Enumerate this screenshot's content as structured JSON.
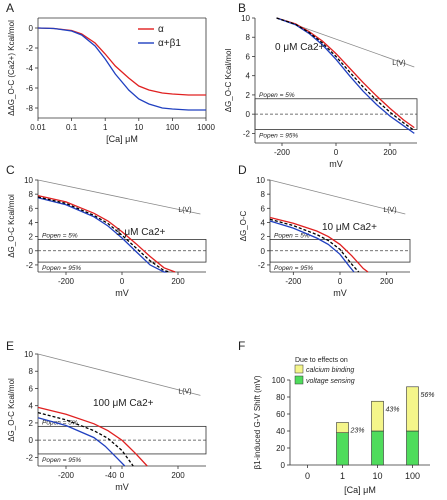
{
  "chart_data": [
    {
      "panel": "A",
      "type": "line",
      "xlabel": "[Ca] μM",
      "ylabel": "ΔΔG_O-C (Ca2+) Kcal/mol",
      "xscale": "log",
      "xlim": [
        0.01,
        1000
      ],
      "ylim": [
        -9,
        1
      ],
      "xticks": [
        0.01,
        0.1,
        1,
        10,
        100,
        1000
      ],
      "xticklabels": [
        "0.01",
        "0.1",
        "1",
        "10",
        "100",
        "1000"
      ],
      "yticks": [
        0,
        -2,
        -4,
        -6,
        -8
      ],
      "yticklabels": [
        "0",
        "-2",
        "-4",
        "-6",
        "-8"
      ],
      "legend": [
        "α",
        "α+β1"
      ],
      "legend_position": "top-right",
      "series": [
        {
          "name": "α",
          "color": "#e02020",
          "x": [
            0.01,
            0.03,
            0.1,
            0.2,
            0.5,
            1,
            2,
            5,
            10,
            20,
            50,
            100,
            300,
            1000
          ],
          "y": [
            0,
            -0.05,
            -0.25,
            -0.6,
            -1.5,
            -2.6,
            -3.8,
            -5.0,
            -5.8,
            -6.2,
            -6.5,
            -6.6,
            -6.7,
            -6.7
          ]
        },
        {
          "name": "α+β1",
          "color": "#2040c0",
          "x": [
            0.01,
            0.03,
            0.1,
            0.2,
            0.5,
            1,
            2,
            5,
            10,
            20,
            50,
            100,
            300,
            1000
          ],
          "y": [
            0,
            -0.05,
            -0.3,
            -0.7,
            -1.8,
            -3.1,
            -4.6,
            -6.2,
            -7.1,
            -7.6,
            -8.0,
            -8.1,
            -8.2,
            -8.2
          ]
        }
      ]
    },
    {
      "panel": "B",
      "type": "line",
      "title": "0 μM Ca2+",
      "xlabel": "mV",
      "ylabel": "ΔG_O-C Kcal/mol",
      "xlim": [
        -300,
        300
      ],
      "ylim": [
        -3,
        10
      ],
      "xticks": [
        -200,
        0,
        200
      ],
      "xticklabels": [
        "-200",
        "0",
        "200"
      ],
      "yticks": [
        10,
        8,
        6,
        4,
        2,
        0,
        -2
      ],
      "yticklabels": [
        "10",
        "8",
        "6",
        "4",
        "2",
        "0",
        "-2"
      ],
      "line_label": "L(V)",
      "popen_low": "Popen = 5%",
      "popen_high": "Popen = 95%",
      "series": [
        {
          "color": "#888888",
          "x": [
            -220,
            290
          ],
          "y": [
            10,
            4.9
          ]
        },
        {
          "color": "#e02020",
          "x": [
            -220,
            -150,
            -100,
            -50,
            0,
            50,
            100,
            150,
            200,
            250,
            290
          ],
          "y": [
            10,
            9.4,
            8.6,
            7.6,
            6.3,
            4.8,
            3.3,
            1.9,
            0.6,
            -0.6,
            -1.4
          ]
        },
        {
          "color": "#2040c0",
          "x": [
            -220,
            -150,
            -100,
            -50,
            0,
            50,
            100,
            150,
            200,
            250,
            290
          ],
          "y": [
            10,
            9.3,
            8.4,
            7.2,
            5.7,
            4.0,
            2.4,
            1.0,
            -0.2,
            -1.2,
            -2.0
          ]
        },
        {
          "color": "#000000",
          "x": [
            -220,
            -150,
            -100,
            -50,
            0,
            50,
            100,
            150,
            200,
            250,
            290
          ],
          "y": [
            10,
            9.35,
            8.5,
            7.4,
            6.0,
            4.4,
            2.85,
            1.45,
            0.2,
            -0.9,
            -1.7
          ]
        }
      ],
      "hlines": [
        1.6,
        0,
        -1.6
      ]
    },
    {
      "panel": "C",
      "type": "line",
      "title": "1 μM Ca2+",
      "xlabel": "mV",
      "ylabel": "ΔG_O-C Kcal/mol",
      "xlim": [
        -300,
        300
      ],
      "ylim": [
        -3,
        10
      ],
      "xticks": [
        -200,
        0,
        200
      ],
      "xticklabels": [
        "-200",
        "0",
        "200"
      ],
      "yticks": [
        10,
        8,
        6,
        4,
        2,
        0,
        -2
      ],
      "yticklabels": [
        "10",
        "8",
        "6",
        "4",
        "2",
        "0",
        "-2"
      ],
      "line_label": "L(V)",
      "popen_low": "Popen = 5%",
      "popen_high": "Popen = 95%",
      "series": [
        {
          "color": "#888888",
          "x": [
            -300,
            280
          ],
          "y": [
            10,
            5.2
          ]
        },
        {
          "color": "#e02020",
          "x": [
            -300,
            -200,
            -100,
            -50,
            0,
            50,
            100,
            150,
            190
          ],
          "y": [
            7.8,
            6.9,
            5.3,
            4.2,
            2.7,
            1.0,
            -0.8,
            -2.4,
            -3.0
          ]
        },
        {
          "color": "#2040c0",
          "x": [
            -300,
            -200,
            -100,
            -50,
            0,
            50,
            100,
            150,
            160
          ],
          "y": [
            7.5,
            6.5,
            4.8,
            3.5,
            1.8,
            -0.1,
            -2.0,
            -3.0,
            -3.0
          ]
        },
        {
          "color": "#000000",
          "x": [
            -300,
            -200,
            -100,
            -50,
            0,
            50,
            100,
            150,
            170
          ],
          "y": [
            7.6,
            6.7,
            5.0,
            3.85,
            2.2,
            0.4,
            -1.4,
            -2.8,
            -3.0
          ]
        }
      ],
      "hlines": [
        1.6,
        0,
        -1.6
      ]
    },
    {
      "panel": "D",
      "type": "line",
      "title": "10 μM Ca2+",
      "xlabel": "mV",
      "ylabel": "ΔG_O-C",
      "xlim": [
        -300,
        300
      ],
      "ylim": [
        -3,
        10
      ],
      "xticks": [
        -200,
        0,
        200
      ],
      "xticklabels": [
        "-200",
        "0",
        "200"
      ],
      "yticks": [
        10,
        8,
        6,
        4,
        2,
        0,
        -2
      ],
      "yticklabels": [
        "10",
        "8",
        "6",
        "4",
        "2",
        "0",
        "-2"
      ],
      "line_label": "L(V)",
      "popen_low": "Popen = 5%",
      "popen_high": "Popen = 95%",
      "series": [
        {
          "color": "#888888",
          "x": [
            -300,
            280
          ],
          "y": [
            10,
            5.2
          ]
        },
        {
          "color": "#e02020",
          "x": [
            -300,
            -200,
            -100,
            -50,
            0,
            50,
            100,
            120
          ],
          "y": [
            4.7,
            3.9,
            2.8,
            2.0,
            0.9,
            -0.7,
            -2.5,
            -3.0
          ]
        },
        {
          "color": "#2040c0",
          "x": [
            -300,
            -200,
            -100,
            -50,
            0,
            40,
            60
          ],
          "y": [
            4.2,
            3.2,
            1.8,
            0.9,
            -0.5,
            -2.2,
            -3.0
          ]
        },
        {
          "color": "#000000",
          "x": [
            -300,
            -200,
            -100,
            -50,
            0,
            50,
            80
          ],
          "y": [
            4.45,
            3.55,
            2.3,
            1.45,
            0.2,
            -1.9,
            -3.0
          ]
        }
      ],
      "hlines": [
        1.6,
        0,
        -1.6
      ]
    },
    {
      "panel": "E",
      "type": "line",
      "title": "100 μM Ca2+",
      "xlabel": "mV",
      "ylabel": "ΔG_O-C Kcal/mol",
      "xlim": [
        -300,
        300
      ],
      "ylim": [
        -3,
        10
      ],
      "xticks": [
        -200,
        -40,
        0,
        200
      ],
      "xticklabels": [
        "-200",
        "-40",
        "0",
        "200"
      ],
      "yticks": [
        10,
        8,
        6,
        4,
        2,
        0,
        -2
      ],
      "yticklabels": [
        "10",
        "8",
        "6",
        "4",
        "2",
        "0",
        "-2"
      ],
      "line_label": "L(V)",
      "popen_low": "Popen = 5%",
      "popen_high": "Popen = 95%",
      "series": [
        {
          "color": "#888888",
          "x": [
            -300,
            280
          ],
          "y": [
            10,
            5.2
          ]
        },
        {
          "color": "#e02020",
          "x": [
            -300,
            -200,
            -100,
            -50,
            0,
            50,
            90
          ],
          "y": [
            3.8,
            3.0,
            1.9,
            1.1,
            0.0,
            -1.6,
            -3.0
          ]
        },
        {
          "color": "#2040c0",
          "x": [
            -300,
            -200,
            -100,
            -60,
            -20,
            10
          ],
          "y": [
            2.6,
            1.7,
            0.3,
            -0.7,
            -2.0,
            -3.0
          ]
        },
        {
          "color": "#000000",
          "x": [
            -300,
            -200,
            -100,
            -50,
            0,
            40
          ],
          "y": [
            3.2,
            2.35,
            1.1,
            0.2,
            -1.2,
            -3.0
          ]
        }
      ],
      "hlines": [
        1.6,
        0,
        -1.6
      ]
    },
    {
      "panel": "F",
      "type": "bar",
      "legend_title": "Due to effects on",
      "legend": [
        "calcium binding",
        "voltage sensing"
      ],
      "legend_position": "top-left",
      "xlabel": "[Ca] μM",
      "ylabel": "β1-induced G-V Shift (mV)",
      "ylim": [
        0,
        100
      ],
      "yticks": [
        0,
        20,
        40,
        60,
        80,
        100
      ],
      "yticklabels": [
        "0",
        "20",
        "40",
        "60",
        "80",
        "100"
      ],
      "categories": [
        "0",
        "1",
        "10",
        "100"
      ],
      "series": [
        {
          "name": "voltage sensing",
          "color": "#4fdc5c",
          "values": [
            0,
            38,
            40,
            40
          ]
        },
        {
          "name": "calcium binding",
          "color": "#f4f58a",
          "values": [
            0,
            12,
            35,
            52
          ]
        }
      ],
      "annotations": [
        "23%",
        "43%",
        "56%"
      ]
    }
  ]
}
